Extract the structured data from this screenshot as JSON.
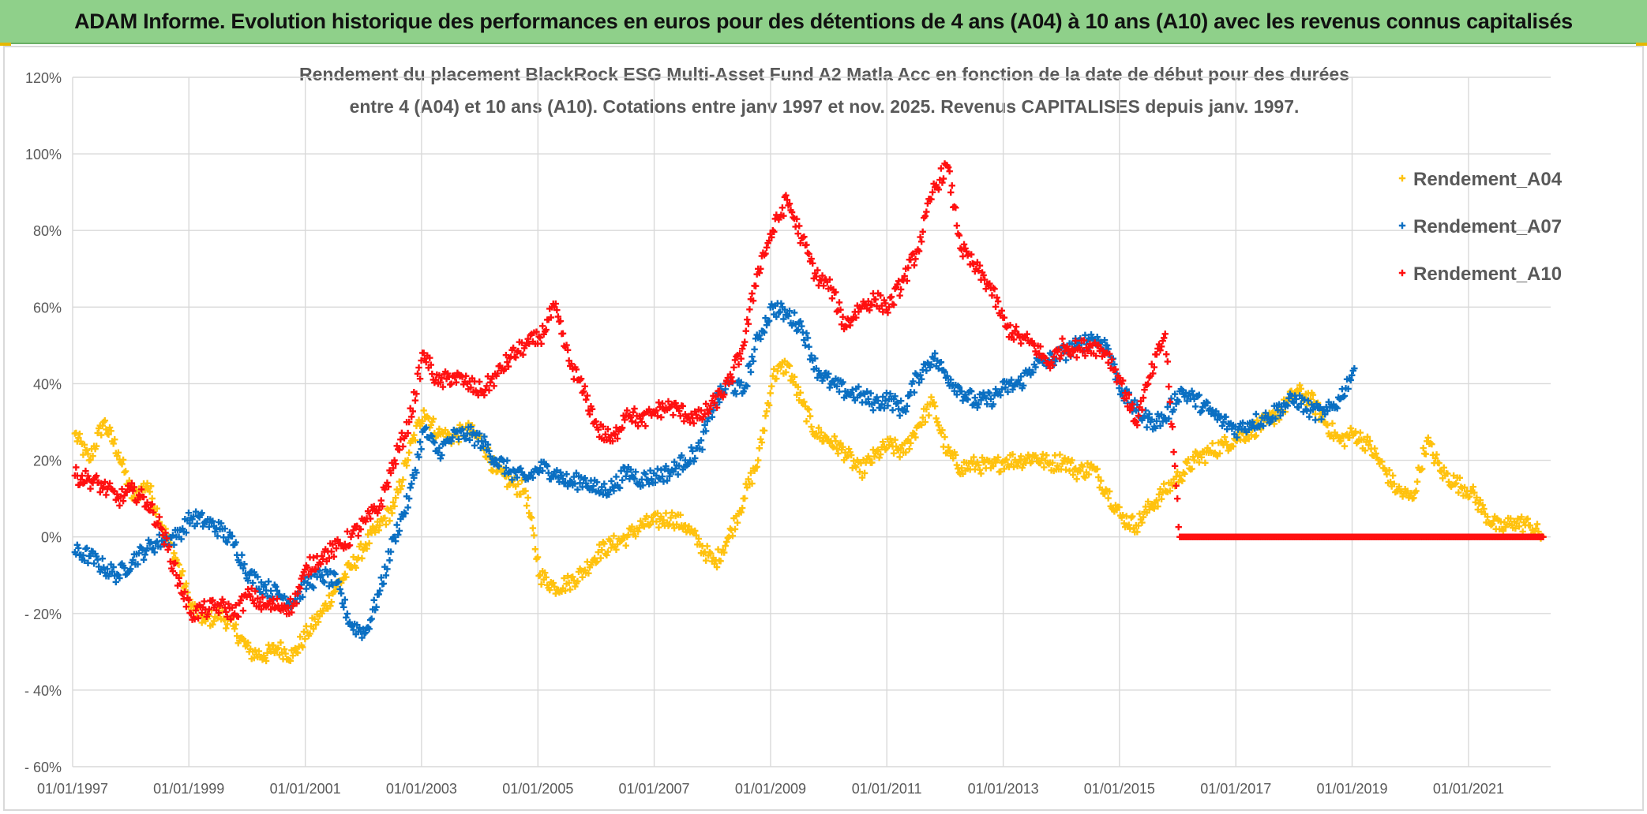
{
  "banner": {
    "title": "ADAM Informe. Evolution historique des performances en euros pour des détentions de 4 ans (A04) à 10 ans (A10) avec les revenus connus capitalisés"
  },
  "colors": {
    "banner_bg": "#8fd08a",
    "A04": "#ffc20e",
    "A07": "#0a6fc2",
    "A10": "#ff1010",
    "grid": "#d9d9d9",
    "text": "#595959"
  },
  "chart_data": {
    "type": "scatter",
    "title_line1": "Rendement du placement BlackRock ESG Multi-Asset Fund A2 Matla Acc en fonction de la date de début pour des durées",
    "title_line2": "entre 4 (A04) et 10 ans (A10). Cotations entre janv 1997 et nov. 2025. Revenus CAPITALISES depuis janv. 1997.",
    "xlabel": "",
    "ylabel": "",
    "x_range": [
      "01/01/1997",
      "01/06/2022"
    ],
    "ylim": [
      -60,
      120
    ],
    "y_ticks": [
      120,
      100,
      80,
      60,
      40,
      20,
      0,
      -20,
      -40,
      -60
    ],
    "y_tick_labels": [
      "120%",
      "100%",
      "80%",
      "60%",
      "40%",
      "20%",
      "0%",
      "- 20%",
      "- 40%",
      "- 60%"
    ],
    "x_ticks": [
      "01/01/1997",
      "01/01/1999",
      "01/01/2001",
      "01/01/2003",
      "01/01/2005",
      "01/01/2007",
      "01/01/2009",
      "01/01/2011",
      "01/01/2013",
      "01/01/2015",
      "01/01/2017",
      "01/01/2019",
      "01/01/2021"
    ],
    "grid": true,
    "legend_position": "top-right",
    "marker": "+",
    "series": [
      {
        "name": "Rendement_A04",
        "color": "#ffc20e",
        "points": [
          [
            "1997-01",
            27
          ],
          [
            "1997-04",
            20
          ],
          [
            "1997-07",
            30
          ],
          [
            "1997-10",
            22
          ],
          [
            "1998-01",
            10
          ],
          [
            "1998-04",
            14
          ],
          [
            "1998-07",
            3
          ],
          [
            "1998-10",
            -6
          ],
          [
            "1999-01",
            -18
          ],
          [
            "1999-04",
            -22
          ],
          [
            "1999-07",
            -20
          ],
          [
            "1999-10",
            -24
          ],
          [
            "2000-01",
            -30
          ],
          [
            "2000-04",
            -31
          ],
          [
            "2000-07",
            -29
          ],
          [
            "2000-10",
            -31
          ],
          [
            "2001-01",
            -25
          ],
          [
            "2001-04",
            -20
          ],
          [
            "2001-07",
            -13
          ],
          [
            "2001-10",
            -8
          ],
          [
            "2002-01",
            -2
          ],
          [
            "2002-04",
            3
          ],
          [
            "2002-07",
            8
          ],
          [
            "2002-10",
            22
          ],
          [
            "2003-01",
            33
          ],
          [
            "2003-04",
            27
          ],
          [
            "2003-07",
            26
          ],
          [
            "2003-10",
            28
          ],
          [
            "2004-01",
            25
          ],
          [
            "2004-04",
            17
          ],
          [
            "2004-07",
            14
          ],
          [
            "2004-10",
            12
          ],
          [
            "2005-01",
            -10
          ],
          [
            "2005-04",
            -13
          ],
          [
            "2005-07",
            -12
          ],
          [
            "2005-10",
            -9
          ],
          [
            "2006-01",
            -4
          ],
          [
            "2006-04",
            -2
          ],
          [
            "2006-07",
            0
          ],
          [
            "2006-10",
            3
          ],
          [
            "2007-01",
            4
          ],
          [
            "2007-04",
            5
          ],
          [
            "2007-07",
            3
          ],
          [
            "2007-10",
            -2
          ],
          [
            "2008-01",
            -7
          ],
          [
            "2008-04",
            0
          ],
          [
            "2008-07",
            10
          ],
          [
            "2008-10",
            20
          ],
          [
            "2009-01",
            42
          ],
          [
            "2009-04",
            45
          ],
          [
            "2009-07",
            35
          ],
          [
            "2009-10",
            27
          ],
          [
            "2010-01",
            25
          ],
          [
            "2010-04",
            22
          ],
          [
            "2010-07",
            17
          ],
          [
            "2010-10",
            21
          ],
          [
            "2011-01",
            24
          ],
          [
            "2011-04",
            22
          ],
          [
            "2011-07",
            29
          ],
          [
            "2011-10",
            35
          ],
          [
            "2012-01",
            22
          ],
          [
            "2012-04",
            18
          ],
          [
            "2012-07",
            19
          ],
          [
            "2012-10",
            18
          ],
          [
            "2013-01",
            20
          ],
          [
            "2013-04",
            20
          ],
          [
            "2013-07",
            21
          ],
          [
            "2013-10",
            19
          ],
          [
            "2014-01",
            20
          ],
          [
            "2014-04",
            17
          ],
          [
            "2014-07",
            18
          ],
          [
            "2014-10",
            12
          ],
          [
            "2015-01",
            5
          ],
          [
            "2015-04",
            3
          ],
          [
            "2015-07",
            8
          ],
          [
            "2015-10",
            12
          ],
          [
            "2016-01",
            16
          ],
          [
            "2016-04",
            20
          ],
          [
            "2016-07",
            22
          ],
          [
            "2016-10",
            24
          ],
          [
            "2017-01",
            26
          ],
          [
            "2017-04",
            28
          ],
          [
            "2017-07",
            30
          ],
          [
            "2017-10",
            33
          ],
          [
            "2018-01",
            38
          ],
          [
            "2018-04",
            36
          ],
          [
            "2018-07",
            30
          ],
          [
            "2018-10",
            25
          ],
          [
            "2019-01",
            27
          ],
          [
            "2019-04",
            24
          ],
          [
            "2019-07",
            18
          ],
          [
            "2019-10",
            12
          ],
          [
            "2020-01",
            10
          ],
          [
            "2020-04",
            25
          ],
          [
            "2020-07",
            17
          ],
          [
            "2020-10",
            14
          ],
          [
            "2021-01",
            12
          ],
          [
            "2021-04",
            6
          ],
          [
            "2021-07",
            2
          ],
          [
            "2021-10",
            4
          ],
          [
            "2022-01",
            3
          ],
          [
            "2022-04",
            0
          ]
        ]
      },
      {
        "name": "Rendement_A07",
        "color": "#0a6fc2",
        "points": [
          [
            "1997-01",
            -4
          ],
          [
            "1997-04",
            -5
          ],
          [
            "1997-07",
            -8
          ],
          [
            "1997-10",
            -10
          ],
          [
            "1998-01",
            -6
          ],
          [
            "1998-04",
            -3
          ],
          [
            "1998-07",
            -1
          ],
          [
            "1998-10",
            0
          ],
          [
            "1999-01",
            5
          ],
          [
            "1999-04",
            4
          ],
          [
            "1999-07",
            2
          ],
          [
            "1999-10",
            -2
          ],
          [
            "2000-01",
            -10
          ],
          [
            "2000-04",
            -13
          ],
          [
            "2000-07",
            -15
          ],
          [
            "2000-10",
            -17
          ],
          [
            "2001-01",
            -12
          ],
          [
            "2001-04",
            -10
          ],
          [
            "2001-07",
            -12
          ],
          [
            "2001-10",
            -23
          ],
          [
            "2002-01",
            -25
          ],
          [
            "2002-04",
            -14
          ],
          [
            "2002-07",
            0
          ],
          [
            "2002-10",
            10
          ],
          [
            "2003-01",
            28
          ],
          [
            "2003-04",
            22
          ],
          [
            "2003-07",
            26
          ],
          [
            "2003-10",
            27
          ],
          [
            "2004-01",
            25
          ],
          [
            "2004-04",
            20
          ],
          [
            "2004-07",
            17
          ],
          [
            "2004-10",
            15
          ],
          [
            "2005-01",
            18
          ],
          [
            "2005-04",
            17
          ],
          [
            "2005-07",
            14
          ],
          [
            "2005-10",
            15
          ],
          [
            "2006-01",
            12
          ],
          [
            "2006-04",
            13
          ],
          [
            "2006-07",
            17
          ],
          [
            "2006-10",
            15
          ],
          [
            "2007-01",
            16
          ],
          [
            "2007-04",
            17
          ],
          [
            "2007-07",
            20
          ],
          [
            "2007-10",
            23
          ],
          [
            "2008-01",
            35
          ],
          [
            "2008-04",
            40
          ],
          [
            "2008-07",
            38
          ],
          [
            "2008-10",
            52
          ],
          [
            "2009-01",
            60
          ],
          [
            "2009-04",
            58
          ],
          [
            "2009-07",
            55
          ],
          [
            "2009-10",
            44
          ],
          [
            "2010-01",
            40
          ],
          [
            "2010-04",
            38
          ],
          [
            "2010-07",
            37
          ],
          [
            "2010-10",
            35
          ],
          [
            "2011-01",
            36
          ],
          [
            "2011-04",
            33
          ],
          [
            "2011-07",
            42
          ],
          [
            "2011-10",
            47
          ],
          [
            "2012-01",
            42
          ],
          [
            "2012-04",
            38
          ],
          [
            "2012-07",
            35
          ],
          [
            "2012-10",
            36
          ],
          [
            "2013-01",
            39
          ],
          [
            "2013-04",
            40
          ],
          [
            "2013-07",
            45
          ],
          [
            "2013-10",
            46
          ],
          [
            "2014-01",
            48
          ],
          [
            "2014-04",
            50
          ],
          [
            "2014-07",
            52
          ],
          [
            "2014-10",
            50
          ],
          [
            "2015-01",
            38
          ],
          [
            "2015-04",
            33
          ],
          [
            "2015-07",
            30
          ],
          [
            "2015-10",
            31
          ],
          [
            "2016-01",
            38
          ],
          [
            "2016-04",
            36
          ],
          [
            "2016-07",
            33
          ],
          [
            "2016-10",
            30
          ],
          [
            "2017-01",
            28
          ],
          [
            "2017-04",
            30
          ],
          [
            "2017-07",
            31
          ],
          [
            "2017-10",
            34
          ],
          [
            "2018-01",
            36
          ],
          [
            "2018-04",
            33
          ],
          [
            "2018-07",
            32
          ],
          [
            "2018-10",
            36
          ],
          [
            "2019-01",
            44
          ]
        ]
      },
      {
        "name": "Rendement_A10",
        "color": "#ff1010",
        "points": [
          [
            "1997-01",
            16
          ],
          [
            "1997-04",
            15
          ],
          [
            "1997-07",
            13
          ],
          [
            "1997-10",
            10
          ],
          [
            "1998-01",
            12
          ],
          [
            "1998-04",
            9
          ],
          [
            "1998-07",
            2
          ],
          [
            "1998-10",
            -10
          ],
          [
            "1999-01",
            -20
          ],
          [
            "1999-04",
            -19
          ],
          [
            "1999-07",
            -18
          ],
          [
            "1999-10",
            -20
          ],
          [
            "2000-01",
            -15
          ],
          [
            "2000-04",
            -18
          ],
          [
            "2000-07",
            -18
          ],
          [
            "2000-10",
            -18
          ],
          [
            "2001-01",
            -8
          ],
          [
            "2001-04",
            -5
          ],
          [
            "2001-07",
            -3
          ],
          [
            "2001-10",
            0
          ],
          [
            "2002-01",
            4
          ],
          [
            "2002-04",
            8
          ],
          [
            "2002-07",
            20
          ],
          [
            "2002-10",
            30
          ],
          [
            "2003-01",
            48
          ],
          [
            "2003-04",
            40
          ],
          [
            "2003-07",
            42
          ],
          [
            "2003-10",
            40
          ],
          [
            "2004-01",
            38
          ],
          [
            "2004-04",
            42
          ],
          [
            "2004-07",
            47
          ],
          [
            "2004-10",
            50
          ],
          [
            "2005-01",
            52
          ],
          [
            "2005-04",
            60
          ],
          [
            "2005-07",
            46
          ],
          [
            "2005-10",
            38
          ],
          [
            "2006-01",
            28
          ],
          [
            "2006-04",
            25
          ],
          [
            "2006-07",
            33
          ],
          [
            "2006-10",
            30
          ],
          [
            "2007-01",
            33
          ],
          [
            "2007-04",
            34
          ],
          [
            "2007-07",
            32
          ],
          [
            "2007-10",
            31
          ],
          [
            "2008-01",
            35
          ],
          [
            "2008-04",
            40
          ],
          [
            "2008-07",
            50
          ],
          [
            "2008-10",
            70
          ],
          [
            "2009-01",
            80
          ],
          [
            "2009-04",
            88
          ],
          [
            "2009-07",
            78
          ],
          [
            "2009-10",
            68
          ],
          [
            "2010-01",
            65
          ],
          [
            "2010-04",
            55
          ],
          [
            "2010-07",
            60
          ],
          [
            "2010-10",
            62
          ],
          [
            "2011-01",
            60
          ],
          [
            "2011-04",
            67
          ],
          [
            "2011-07",
            75
          ],
          [
            "2011-10",
            90
          ],
          [
            "2012-01",
            97
          ],
          [
            "2012-04",
            75
          ],
          [
            "2012-07",
            70
          ],
          [
            "2012-10",
            65
          ],
          [
            "2013-01",
            55
          ],
          [
            "2013-04",
            52
          ],
          [
            "2013-07",
            50
          ],
          [
            "2013-10",
            45
          ],
          [
            "2014-01",
            50
          ],
          [
            "2014-04",
            49
          ],
          [
            "2014-07",
            50
          ],
          [
            "2014-10",
            48
          ],
          [
            "2015-01",
            40
          ],
          [
            "2015-04",
            30
          ],
          [
            "2015-07",
            42
          ],
          [
            "2015-10",
            53
          ],
          [
            "2016-01",
            0
          ],
          [
            "2017-01",
            0
          ],
          [
            "2018-01",
            0
          ],
          [
            "2019-01",
            0
          ],
          [
            "2020-01",
            0
          ],
          [
            "2021-01",
            0
          ],
          [
            "2022-04",
            0
          ]
        ]
      }
    ]
  }
}
